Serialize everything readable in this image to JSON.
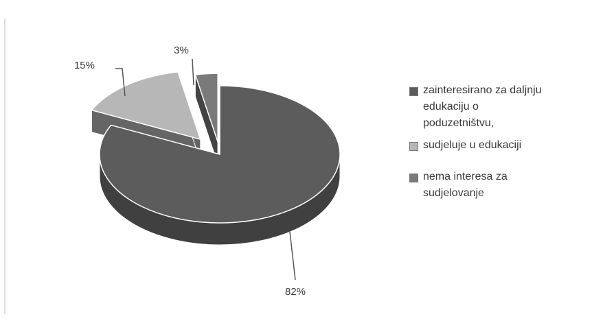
{
  "chart_data": {
    "type": "pie",
    "title": "",
    "categories": [
      "zainteresirano za daljnju edukaciju o poduzetništvu,",
      "sudjeluje u edukaciji",
      "nema interesa za sudjelovanje"
    ],
    "values": [
      82,
      15,
      3
    ],
    "labels": [
      "82%",
      "15%",
      "3%"
    ],
    "colors": [
      "#5c5c5c",
      "#b7b7b7",
      "#7a7a7a"
    ],
    "exploded": true,
    "three_d": true,
    "legend": "right"
  },
  "legend": {
    "items": [
      {
        "label_lines": [
          "zainteresirano za daljnju",
          "edukaciju o",
          "poduzetništvu,"
        ],
        "color": "#5c5c5c"
      },
      {
        "label_lines": [
          "sudjeluje u edukaciji"
        ],
        "color": "#b7b7b7"
      },
      {
        "label_lines": [
          "nema interesa za",
          "sudjelovanje"
        ],
        "color": "#7a7a7a"
      }
    ]
  }
}
